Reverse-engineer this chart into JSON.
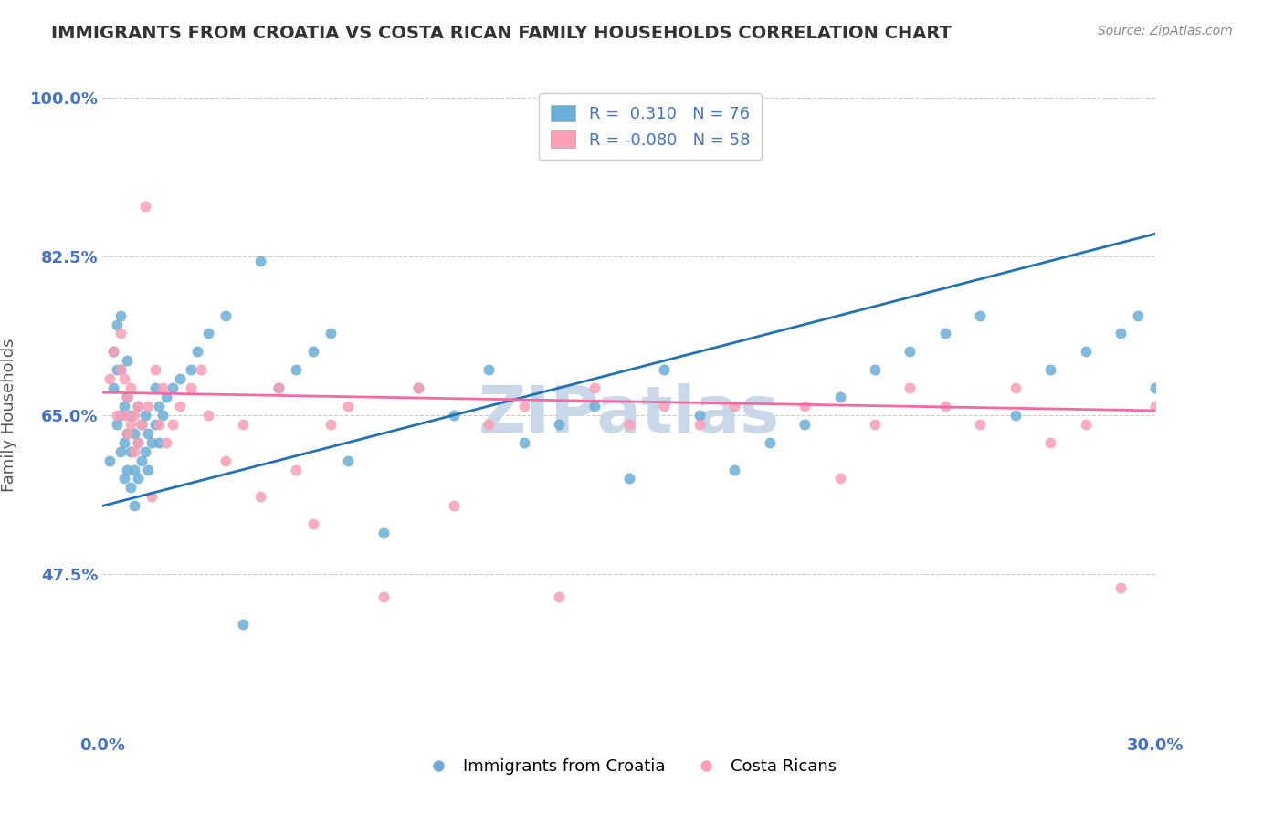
{
  "title": "IMMIGRANTS FROM CROATIA VS COSTA RICAN FAMILY HOUSEHOLDS CORRELATION CHART",
  "source": "Source: ZipAtlas.com",
  "xlabel": "",
  "ylabel": "Family Households",
  "xlim": [
    0.0,
    0.3
  ],
  "ylim": [
    0.3,
    1.0
  ],
  "yticks": [
    0.475,
    0.65,
    0.825,
    1.0
  ],
  "ytick_labels": [
    "47.5%",
    "65.0%",
    "82.5%",
    "100.0%"
  ],
  "xticks": [
    0.0,
    0.3
  ],
  "xtick_labels": [
    "0.0%",
    "30.0%"
  ],
  "blue_R": 0.31,
  "blue_N": 76,
  "pink_R": -0.08,
  "pink_N": 58,
  "blue_color": "#6baed6",
  "pink_color": "#fa9fb5",
  "blue_line_color": "#2171b5",
  "pink_line_color": "#f768a1",
  "blue_scatter_x": [
    0.002,
    0.003,
    0.003,
    0.004,
    0.004,
    0.004,
    0.005,
    0.005,
    0.005,
    0.005,
    0.006,
    0.006,
    0.006,
    0.007,
    0.007,
    0.007,
    0.007,
    0.008,
    0.008,
    0.008,
    0.009,
    0.009,
    0.009,
    0.01,
    0.01,
    0.01,
    0.011,
    0.011,
    0.012,
    0.012,
    0.013,
    0.013,
    0.014,
    0.015,
    0.015,
    0.016,
    0.016,
    0.017,
    0.018,
    0.02,
    0.022,
    0.025,
    0.027,
    0.03,
    0.035,
    0.04,
    0.045,
    0.05,
    0.055,
    0.06,
    0.065,
    0.07,
    0.08,
    0.09,
    0.1,
    0.11,
    0.12,
    0.13,
    0.14,
    0.15,
    0.16,
    0.17,
    0.18,
    0.19,
    0.2,
    0.21,
    0.22,
    0.23,
    0.24,
    0.25,
    0.26,
    0.27,
    0.28,
    0.29,
    0.295,
    0.3
  ],
  "blue_scatter_y": [
    0.6,
    0.68,
    0.72,
    0.64,
    0.7,
    0.75,
    0.61,
    0.65,
    0.7,
    0.76,
    0.58,
    0.62,
    0.66,
    0.59,
    0.63,
    0.67,
    0.71,
    0.57,
    0.61,
    0.65,
    0.55,
    0.59,
    0.63,
    0.58,
    0.62,
    0.66,
    0.6,
    0.64,
    0.61,
    0.65,
    0.59,
    0.63,
    0.62,
    0.64,
    0.68,
    0.62,
    0.66,
    0.65,
    0.67,
    0.68,
    0.69,
    0.7,
    0.72,
    0.74,
    0.76,
    0.42,
    0.82,
    0.68,
    0.7,
    0.72,
    0.74,
    0.6,
    0.52,
    0.68,
    0.65,
    0.7,
    0.62,
    0.64,
    0.66,
    0.58,
    0.7,
    0.65,
    0.59,
    0.62,
    0.64,
    0.67,
    0.7,
    0.72,
    0.74,
    0.76,
    0.65,
    0.7,
    0.72,
    0.74,
    0.76,
    0.68
  ],
  "pink_scatter_x": [
    0.002,
    0.003,
    0.004,
    0.005,
    0.005,
    0.006,
    0.006,
    0.007,
    0.007,
    0.008,
    0.008,
    0.009,
    0.009,
    0.01,
    0.01,
    0.011,
    0.012,
    0.013,
    0.014,
    0.015,
    0.016,
    0.017,
    0.018,
    0.02,
    0.022,
    0.025,
    0.028,
    0.03,
    0.035,
    0.04,
    0.045,
    0.05,
    0.055,
    0.06,
    0.065,
    0.07,
    0.08,
    0.09,
    0.1,
    0.11,
    0.12,
    0.13,
    0.14,
    0.15,
    0.16,
    0.17,
    0.18,
    0.2,
    0.21,
    0.22,
    0.23,
    0.24,
    0.25,
    0.26,
    0.27,
    0.28,
    0.29,
    0.3
  ],
  "pink_scatter_y": [
    0.69,
    0.72,
    0.65,
    0.7,
    0.74,
    0.65,
    0.69,
    0.63,
    0.67,
    0.64,
    0.68,
    0.61,
    0.65,
    0.62,
    0.66,
    0.64,
    0.88,
    0.66,
    0.56,
    0.7,
    0.64,
    0.68,
    0.62,
    0.64,
    0.66,
    0.68,
    0.7,
    0.65,
    0.6,
    0.64,
    0.56,
    0.68,
    0.59,
    0.53,
    0.64,
    0.66,
    0.45,
    0.68,
    0.55,
    0.64,
    0.66,
    0.45,
    0.68,
    0.64,
    0.66,
    0.64,
    0.66,
    0.66,
    0.58,
    0.64,
    0.68,
    0.66,
    0.64,
    0.68,
    0.62,
    0.64,
    0.46,
    0.66
  ],
  "blue_trend_x0": 0.0,
  "blue_trend_y0": 0.55,
  "blue_trend_x1": 0.3,
  "blue_trend_y1": 0.85,
  "pink_trend_x0": 0.0,
  "pink_trend_y0": 0.675,
  "pink_trend_x1": 0.3,
  "pink_trend_y1": 0.655,
  "watermark": "ZIPatlas",
  "watermark_color": "#c8d8e8",
  "background_color": "#ffffff",
  "grid_color": "#cccccc",
  "title_color": "#333333",
  "axis_label_color": "#555555",
  "tick_color": "#4472c4"
}
